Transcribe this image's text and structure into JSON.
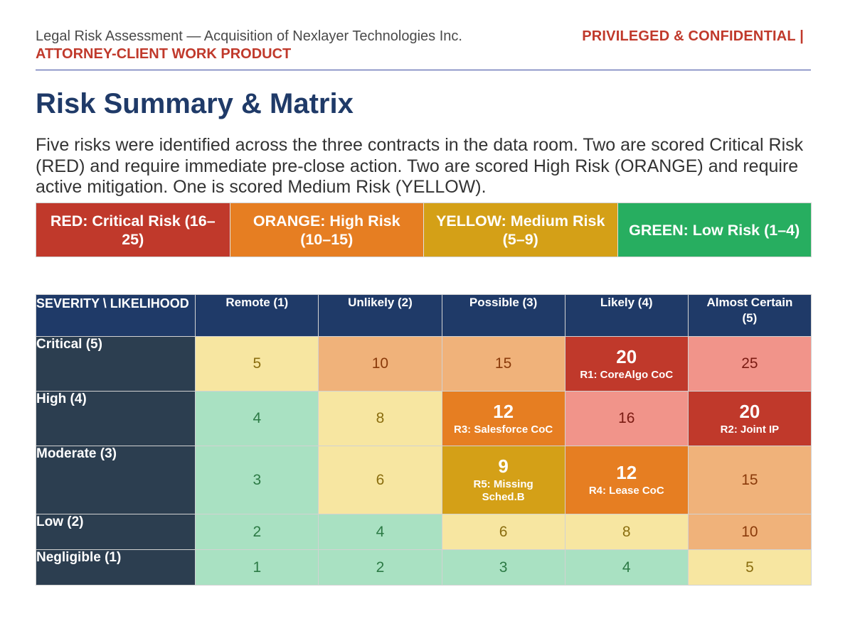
{
  "header": {
    "title": "Legal Risk Assessment  —  Acquisition of Nexlayer Technologies Inc.",
    "confidential": "PRIVILEGED & CONFIDENTIAL  |",
    "work_product": "ATTORNEY-CLIENT WORK PRODUCT"
  },
  "page_title": "Risk Summary & Matrix",
  "summary": "Five risks were identified across the three contracts in the data room. Two are scored Critical Risk (RED) and require immediate pre-close action. Two are scored High Risk (ORANGE) and require active mitigation. One is scored Medium Risk (YELLOW).",
  "legend": [
    {
      "label": "RED: Critical Risk (16–25)",
      "color": "#c0392b"
    },
    {
      "label": "ORANGE: High Risk (10–15)",
      "color": "#e67e22"
    },
    {
      "label": "YELLOW: Medium Risk (5–9)",
      "color": "#d4a017"
    },
    {
      "label": "GREEN: Low Risk (1–4)",
      "color": "#27ae60"
    }
  ],
  "matrix": {
    "corner_label": "SEVERITY \\ LIKELIHOOD",
    "likelihood": [
      "Remote (1)",
      "Unlikely (2)",
      "Possible (3)",
      "Likely (4)",
      "Almost Certain (5)"
    ],
    "rows": [
      {
        "severity": "Critical (5)",
        "cells": [
          {
            "score": "5"
          },
          {
            "score": "10"
          },
          {
            "score": "15"
          },
          {
            "score": "20",
            "risk": "R1: CoreAlgo CoC"
          },
          {
            "score": "25"
          }
        ]
      },
      {
        "severity": "High (4)",
        "cells": [
          {
            "score": "4"
          },
          {
            "score": "8"
          },
          {
            "score": "12",
            "risk": "R3: Salesforce CoC"
          },
          {
            "score": "16"
          },
          {
            "score": "20",
            "risk": "R2: Joint IP"
          }
        ]
      },
      {
        "severity": "Moderate (3)",
        "cells": [
          {
            "score": "3"
          },
          {
            "score": "6"
          },
          {
            "score": "9",
            "risk": "R5: Missing Sched.B"
          },
          {
            "score": "12",
            "risk": "R4: Lease CoC"
          },
          {
            "score": "15"
          }
        ]
      },
      {
        "severity": "Low (2)",
        "cells": [
          {
            "score": "2"
          },
          {
            "score": "4"
          },
          {
            "score": "6"
          },
          {
            "score": "8"
          },
          {
            "score": "10"
          }
        ]
      },
      {
        "severity": "Negligible (1)",
        "cells": [
          {
            "score": "1"
          },
          {
            "score": "2"
          },
          {
            "score": "3"
          },
          {
            "score": "4"
          },
          {
            "score": "5"
          }
        ]
      }
    ]
  }
}
